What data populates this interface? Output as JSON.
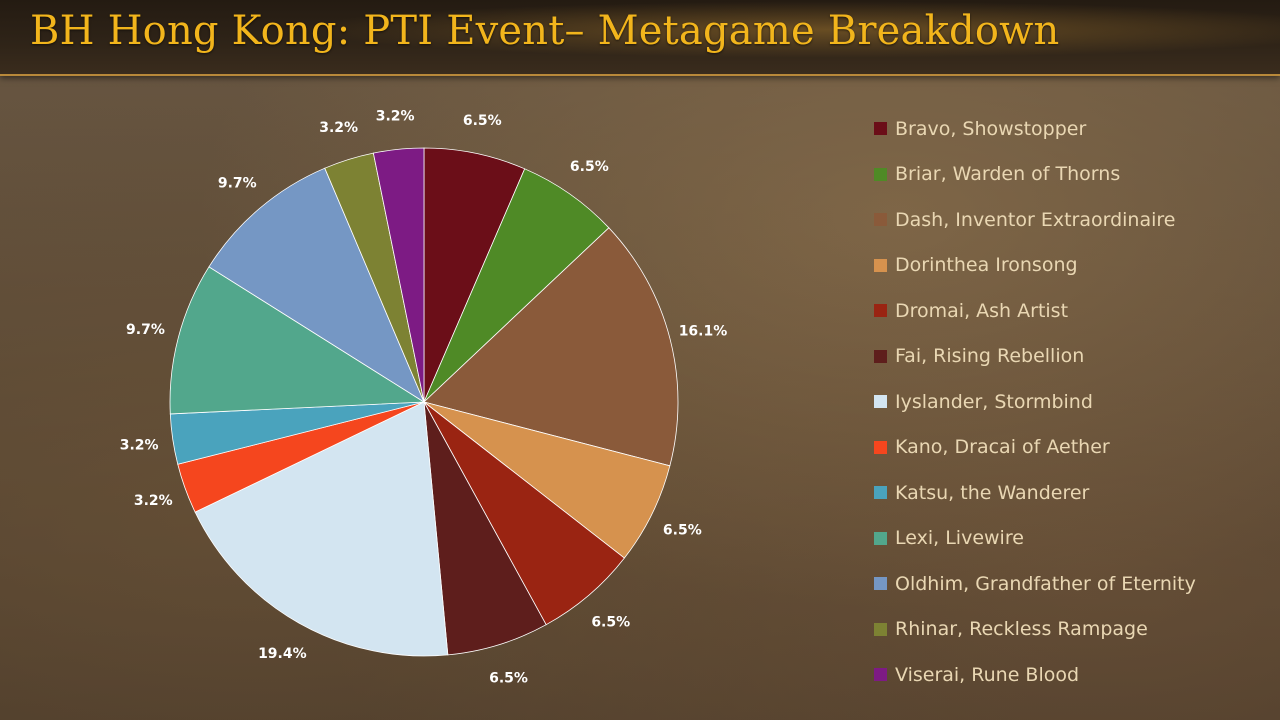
{
  "title": "BH Hong Kong: PTI Event– Metagame Breakdown",
  "chart_data": {
    "type": "pie",
    "title": "BH Hong Kong: PTI Event– Metagame Breakdown",
    "legend_position": "right",
    "slices": [
      {
        "label": "Bravo, Showstopper",
        "value": 6.5,
        "value_label": "6.5%",
        "color": "#6b0e18"
      },
      {
        "label": "Briar, Warden of Thorns",
        "value": 6.5,
        "value_label": "6.5%",
        "color": "#4f8a26"
      },
      {
        "label": "Dash, Inventor Extraordinaire",
        "value": 16.1,
        "value_label": "16.1%",
        "color": "#8a5a3a"
      },
      {
        "label": "Dorinthea Ironsong",
        "value": 6.5,
        "value_label": "6.5%",
        "color": "#d6924e"
      },
      {
        "label": "Dromai, Ash Artist",
        "value": 6.5,
        "value_label": "6.5%",
        "color": "#9a2412"
      },
      {
        "label": "Fai, Rising Rebellion",
        "value": 6.5,
        "value_label": "6.5%",
        "color": "#5e1e1c"
      },
      {
        "label": "Iyslander, Stormbind",
        "value": 19.4,
        "value_label": "19.4%",
        "color": "#d3e5f1"
      },
      {
        "label": "Kano, Dracai of Aether",
        "value": 3.2,
        "value_label": "3.2%",
        "color": "#f5461e"
      },
      {
        "label": "Katsu, the Wanderer",
        "value": 3.2,
        "value_label": "3.2%",
        "color": "#4aa3bd"
      },
      {
        "label": "Lexi, Livewire",
        "value": 9.7,
        "value_label": "9.7%",
        "color": "#52a78c"
      },
      {
        "label": "Oldhim, Grandfather of Eternity",
        "value": 9.7,
        "value_label": "9.7%",
        "color": "#7597c4"
      },
      {
        "label": "Rhinar, Reckless Rampage",
        "value": 3.2,
        "value_label": "3.2%",
        "color": "#7d8233"
      },
      {
        "label": "Viserai, Rune Blood",
        "value": 3.2,
        "value_label": "3.2%",
        "color": "#7d1b84"
      }
    ]
  }
}
